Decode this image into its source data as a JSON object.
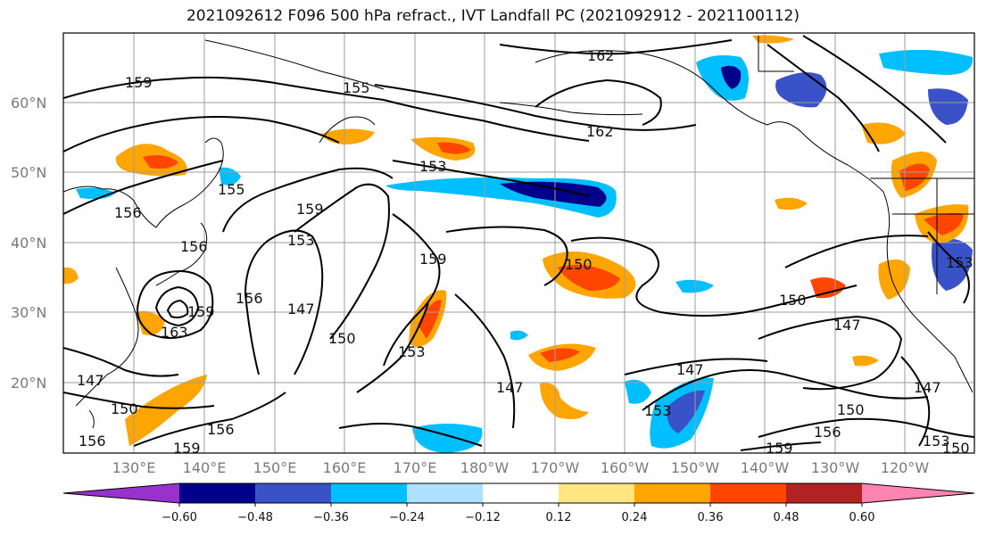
{
  "title": "2021092612 F096 500 hPa refract., IVT Landfall PC (2021092912 - 2021100112)",
  "map": {
    "lat_labels": [
      "60°N",
      "50°N",
      "40°N",
      "30°N",
      "20°N"
    ],
    "lon_labels": [
      "130°E",
      "140°E",
      "150°E",
      "160°E",
      "170°E",
      "180°W",
      "170°W",
      "160°W",
      "150°W",
      "140°W",
      "130°W",
      "120°W"
    ],
    "contour_labels": [
      "159",
      "155",
      "162",
      "162",
      "153",
      "156",
      "159",
      "153",
      "159",
      "150",
      "147",
      "150",
      "153",
      "156",
      "150",
      "147",
      "153",
      "147",
      "150",
      "156",
      "159",
      "147",
      "150",
      "159",
      "156",
      "153",
      "150",
      "147",
      "153",
      "147",
      "163",
      "159",
      "156",
      "155",
      "156"
    ],
    "colors": {
      "frame": "#000000",
      "grid": "#9e9e9e",
      "contour": "#000000",
      "land": "#000000"
    }
  },
  "colorbar": {
    "tick_labels": [
      "−0.60",
      "−0.48",
      "−0.36",
      "−0.24",
      "−0.12",
      "0.12",
      "0.24",
      "0.36",
      "0.48",
      "0.60"
    ],
    "colors": [
      "#9932cc",
      "#00008b",
      "#3a52c8",
      "#00bfff",
      "#b0e0ff",
      "#ffffff",
      "#ffe680",
      "#ffa500",
      "#ff4500",
      "#b22222",
      "#ff85b0"
    ]
  }
}
